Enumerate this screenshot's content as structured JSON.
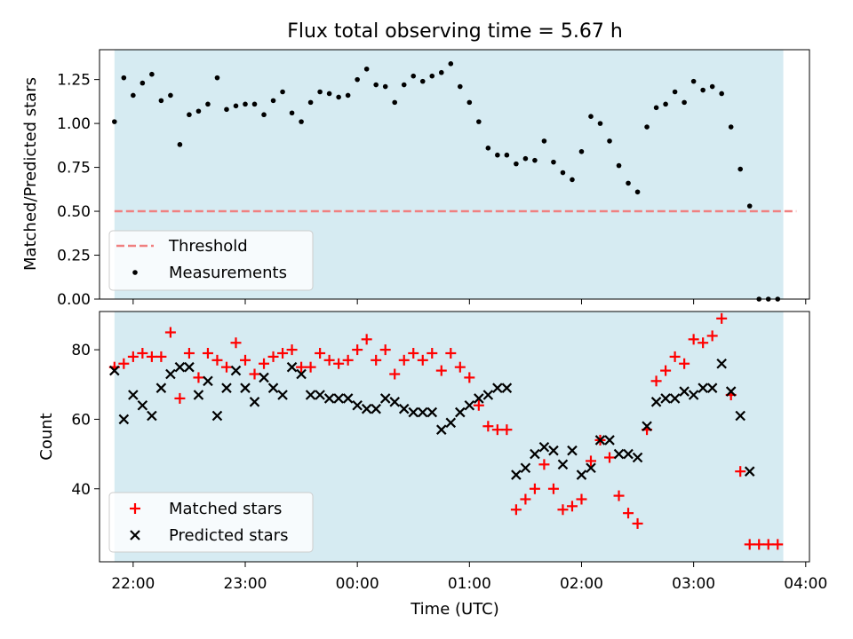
{
  "title": "Flux total observing time = 5.67 h",
  "colors": {
    "shade": "#add8e6",
    "threshold": "#f08080",
    "measurements": "#000000",
    "matched": "#ff0000",
    "predicted": "#000000"
  },
  "chart_data": [
    {
      "type": "scatter",
      "ylabel": "Matched/Predicted stars",
      "xlabel": "",
      "ylim": [
        0,
        1.42
      ],
      "xlim": [
        "21:42",
        "04:02"
      ],
      "grid": false,
      "legend_position": "lower-left",
      "y_ticks": [
        "0.00",
        "0.25",
        "0.50",
        "0.75",
        "1.00",
        "1.25"
      ],
      "shaded_span": [
        "21:50",
        "03:48"
      ],
      "threshold": {
        "name": "Threshold",
        "value": 0.5,
        "x_range": [
          "21:50",
          "03:55"
        ]
      },
      "series": [
        {
          "name": "Measurements",
          "points": [
            [
              "21:50",
              1.01
            ],
            [
              "21:55",
              1.26
            ],
            [
              "22:00",
              1.16
            ],
            [
              "22:05",
              1.23
            ],
            [
              "22:10",
              1.28
            ],
            [
              "22:15",
              1.13
            ],
            [
              "22:20",
              1.16
            ],
            [
              "22:25",
              0.88
            ],
            [
              "22:30",
              1.05
            ],
            [
              "22:35",
              1.07
            ],
            [
              "22:40",
              1.11
            ],
            [
              "22:45",
              1.26
            ],
            [
              "22:50",
              1.08
            ],
            [
              "22:55",
              1.1
            ],
            [
              "23:00",
              1.11
            ],
            [
              "23:05",
              1.11
            ],
            [
              "23:10",
              1.05
            ],
            [
              "23:15",
              1.13
            ],
            [
              "23:20",
              1.18
            ],
            [
              "23:25",
              1.06
            ],
            [
              "23:30",
              1.01
            ],
            [
              "23:35",
              1.12
            ],
            [
              "23:40",
              1.18
            ],
            [
              "23:45",
              1.17
            ],
            [
              "23:50",
              1.15
            ],
            [
              "23:55",
              1.16
            ],
            [
              "00:00",
              1.25
            ],
            [
              "00:05",
              1.31
            ],
            [
              "00:10",
              1.22
            ],
            [
              "00:15",
              1.21
            ],
            [
              "00:20",
              1.12
            ],
            [
              "00:25",
              1.22
            ],
            [
              "00:30",
              1.27
            ],
            [
              "00:35",
              1.24
            ],
            [
              "00:40",
              1.27
            ],
            [
              "00:45",
              1.29
            ],
            [
              "00:50",
              1.34
            ],
            [
              "00:55",
              1.21
            ],
            [
              "01:00",
              1.12
            ],
            [
              "01:05",
              1.01
            ],
            [
              "01:10",
              0.86
            ],
            [
              "01:15",
              0.82
            ],
            [
              "01:20",
              0.82
            ],
            [
              "01:25",
              0.77
            ],
            [
              "01:30",
              0.8
            ],
            [
              "01:35",
              0.79
            ],
            [
              "01:40",
              0.9
            ],
            [
              "01:45",
              0.78
            ],
            [
              "01:50",
              0.72
            ],
            [
              "01:55",
              0.68
            ],
            [
              "02:00",
              0.84
            ],
            [
              "02:05",
              1.04
            ],
            [
              "02:10",
              1.0
            ],
            [
              "02:15",
              0.9
            ],
            [
              "02:20",
              0.76
            ],
            [
              "02:25",
              0.66
            ],
            [
              "02:30",
              0.61
            ],
            [
              "02:35",
              0.98
            ],
            [
              "02:40",
              1.09
            ],
            [
              "02:45",
              1.11
            ],
            [
              "02:50",
              1.18
            ],
            [
              "02:55",
              1.12
            ],
            [
              "03:00",
              1.24
            ],
            [
              "03:05",
              1.19
            ],
            [
              "03:10",
              1.21
            ],
            [
              "03:15",
              1.17
            ],
            [
              "03:20",
              0.98
            ],
            [
              "03:25",
              0.74
            ],
            [
              "03:30",
              0.53
            ],
            [
              "03:35",
              0.0
            ],
            [
              "03:40",
              0.0
            ],
            [
              "03:45",
              0.0
            ]
          ]
        }
      ]
    },
    {
      "type": "scatter",
      "ylabel": "Count",
      "xlabel": "Time (UTC)",
      "ylim": [
        19,
        91
      ],
      "xlim": [
        "21:42",
        "04:02"
      ],
      "grid": false,
      "legend_position": "lower-left",
      "x_ticks": [
        "22:00",
        "23:00",
        "00:00",
        "01:00",
        "02:00",
        "03:00",
        "04:00"
      ],
      "y_ticks": [
        "40",
        "60",
        "80"
      ],
      "shaded_span": [
        "21:50",
        "03:48"
      ],
      "series": [
        {
          "name": "Matched stars",
          "points": [
            [
              "21:50",
              75
            ],
            [
              "21:55",
              76
            ],
            [
              "22:00",
              78
            ],
            [
              "22:05",
              79
            ],
            [
              "22:10",
              78
            ],
            [
              "22:15",
              78
            ],
            [
              "22:20",
              85
            ],
            [
              "22:25",
              66
            ],
            [
              "22:30",
              79
            ],
            [
              "22:35",
              72
            ],
            [
              "22:40",
              79
            ],
            [
              "22:45",
              77
            ],
            [
              "22:50",
              75
            ],
            [
              "22:55",
              82
            ],
            [
              "23:00",
              77
            ],
            [
              "23:05",
              73
            ],
            [
              "23:10",
              76
            ],
            [
              "23:15",
              78
            ],
            [
              "23:20",
              79
            ],
            [
              "23:25",
              80
            ],
            [
              "23:30",
              75
            ],
            [
              "23:35",
              75
            ],
            [
              "23:40",
              79
            ],
            [
              "23:45",
              77
            ],
            [
              "23:50",
              76
            ],
            [
              "23:55",
              77
            ],
            [
              "00:00",
              80
            ],
            [
              "00:05",
              83
            ],
            [
              "00:10",
              77
            ],
            [
              "00:15",
              80
            ],
            [
              "00:20",
              73
            ],
            [
              "00:25",
              77
            ],
            [
              "00:30",
              79
            ],
            [
              "00:35",
              77
            ],
            [
              "00:40",
              79
            ],
            [
              "00:45",
              74
            ],
            [
              "00:50",
              79
            ],
            [
              "00:55",
              75
            ],
            [
              "01:00",
              72
            ],
            [
              "01:05",
              64
            ],
            [
              "01:10",
              58
            ],
            [
              "01:15",
              57
            ],
            [
              "01:20",
              57
            ],
            [
              "01:25",
              34
            ],
            [
              "01:30",
              37
            ],
            [
              "01:35",
              40
            ],
            [
              "01:40",
              47
            ],
            [
              "01:45",
              40
            ],
            [
              "01:50",
              34
            ],
            [
              "01:55",
              35
            ],
            [
              "02:00",
              37
            ],
            [
              "02:05",
              48
            ],
            [
              "02:10",
              54
            ],
            [
              "02:15",
              49
            ],
            [
              "02:20",
              38
            ],
            [
              "02:25",
              33
            ],
            [
              "02:30",
              30
            ],
            [
              "02:35",
              57
            ],
            [
              "02:40",
              71
            ],
            [
              "02:45",
              74
            ],
            [
              "02:50",
              78
            ],
            [
              "02:55",
              76
            ],
            [
              "03:00",
              83
            ],
            [
              "03:05",
              82
            ],
            [
              "03:10",
              84
            ],
            [
              "03:15",
              89
            ],
            [
              "03:20",
              67
            ],
            [
              "03:25",
              45
            ],
            [
              "03:30",
              24
            ],
            [
              "03:35",
              24
            ],
            [
              "03:40",
              24
            ],
            [
              "03:45",
              24
            ]
          ]
        },
        {
          "name": "Predicted stars",
          "points": [
            [
              "21:50",
              74
            ],
            [
              "21:55",
              60
            ],
            [
              "22:00",
              67
            ],
            [
              "22:05",
              64
            ],
            [
              "22:10",
              61
            ],
            [
              "22:15",
              69
            ],
            [
              "22:20",
              73
            ],
            [
              "22:25",
              75
            ],
            [
              "22:30",
              75
            ],
            [
              "22:35",
              67
            ],
            [
              "22:40",
              71
            ],
            [
              "22:45",
              61
            ],
            [
              "22:50",
              69
            ],
            [
              "22:55",
              74
            ],
            [
              "23:00",
              69
            ],
            [
              "23:05",
              65
            ],
            [
              "23:10",
              72
            ],
            [
              "23:15",
              69
            ],
            [
              "23:20",
              67
            ],
            [
              "23:25",
              75
            ],
            [
              "23:30",
              73
            ],
            [
              "23:35",
              67
            ],
            [
              "23:40",
              67
            ],
            [
              "23:45",
              66
            ],
            [
              "23:50",
              66
            ],
            [
              "23:55",
              66
            ],
            [
              "00:00",
              64
            ],
            [
              "00:05",
              63
            ],
            [
              "00:10",
              63
            ],
            [
              "00:15",
              66
            ],
            [
              "00:20",
              65
            ],
            [
              "00:25",
              63
            ],
            [
              "00:30",
              62
            ],
            [
              "00:35",
              62
            ],
            [
              "00:40",
              62
            ],
            [
              "00:45",
              57
            ],
            [
              "00:50",
              59
            ],
            [
              "00:55",
              62
            ],
            [
              "01:00",
              64
            ],
            [
              "01:05",
              66
            ],
            [
              "01:10",
              67
            ],
            [
              "01:15",
              69
            ],
            [
              "01:20",
              69
            ],
            [
              "01:25",
              44
            ],
            [
              "01:30",
              46
            ],
            [
              "01:35",
              50
            ],
            [
              "01:40",
              52
            ],
            [
              "01:45",
              51
            ],
            [
              "01:50",
              47
            ],
            [
              "01:55",
              51
            ],
            [
              "02:00",
              44
            ],
            [
              "02:05",
              46
            ],
            [
              "02:10",
              54
            ],
            [
              "02:15",
              54
            ],
            [
              "02:20",
              50
            ],
            [
              "02:25",
              50
            ],
            [
              "02:30",
              49
            ],
            [
              "02:35",
              58
            ],
            [
              "02:40",
              65
            ],
            [
              "02:45",
              66
            ],
            [
              "02:50",
              66
            ],
            [
              "02:55",
              68
            ],
            [
              "03:00",
              67
            ],
            [
              "03:05",
              69
            ],
            [
              "03:10",
              69
            ],
            [
              "03:15",
              76
            ],
            [
              "03:20",
              68
            ],
            [
              "03:25",
              61
            ],
            [
              "03:30",
              45
            ]
          ]
        }
      ]
    }
  ]
}
